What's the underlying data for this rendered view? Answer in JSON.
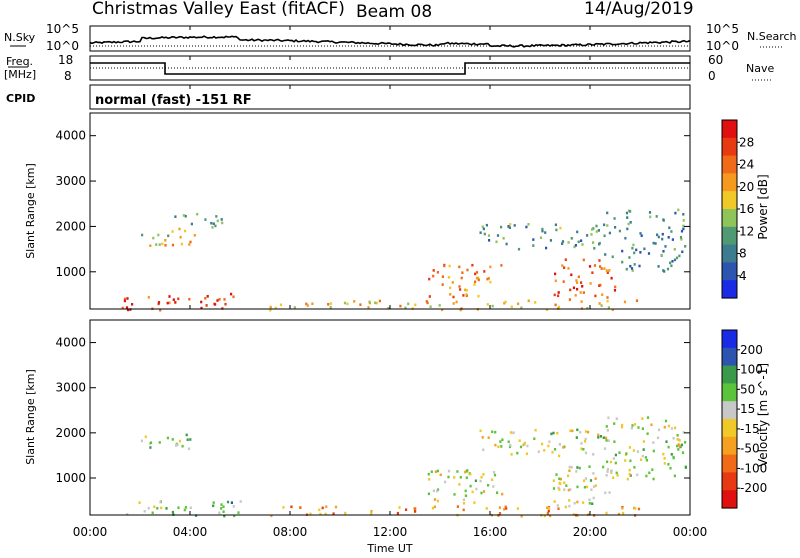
{
  "header": {
    "station": "Christmas Valley East (fitACF)",
    "beam": "Beam 08",
    "date": "14/Aug/2019"
  },
  "top_panels": {
    "nsky_label": "N.Sky",
    "nsearch_label": "N.Search",
    "noise_ticks": [
      "10^5",
      "10^0"
    ],
    "freq_label_1": "Freq.",
    "freq_label_2": "[MHz]",
    "freq_ticks": [
      "18",
      "8"
    ],
    "nave_label": "Nave",
    "nave_ticks": [
      "60",
      "0"
    ],
    "cpid_label": "CPID",
    "cpid_text": "normal (fast) -151 RF"
  },
  "chart_data": [
    {
      "type": "heatmap",
      "quantity": "Power",
      "xlabel": "Time UT",
      "ylabel": "Slant Range [km]",
      "x_ticks": [
        "00:00",
        "04:00",
        "08:00",
        "12:00",
        "16:00",
        "20:00",
        "00:00"
      ],
      "y_ticks": [
        1000,
        2000,
        3000,
        4000
      ],
      "ylim": [
        180,
        4500
      ],
      "colorbar": {
        "label": "Power [dB]",
        "ticks": [
          4,
          8,
          12,
          16,
          20,
          24,
          28
        ],
        "range": [
          0,
          32
        ],
        "colors": [
          "#1a2be6",
          "#2d55b0",
          "#3b7d8f",
          "#4f9a72",
          "#8fc45a",
          "#f0c828",
          "#f59a1e",
          "#f06a18",
          "#e83a12",
          "#e01010"
        ]
      },
      "regions": [
        {
          "t": [
            1.2,
            6.0
          ],
          "r": [
            180,
            550
          ],
          "level": 0.85
        },
        {
          "t": [
            2.0,
            4.2
          ],
          "r": [
            1600,
            2000
          ],
          "level": 0.55
        },
        {
          "t": [
            3.0,
            5.5
          ],
          "r": [
            2000,
            2300
          ],
          "level": 0.35
        },
        {
          "t": [
            7.0,
            22.0
          ],
          "r": [
            180,
            400
          ],
          "level": 0.6
        },
        {
          "t": [
            13.5,
            16.5
          ],
          "r": [
            450,
            1200
          ],
          "level": 0.7
        },
        {
          "t": [
            15.5,
            20.5
          ],
          "r": [
            1500,
            2100
          ],
          "level": 0.35
        },
        {
          "t": [
            18.5,
            21.0
          ],
          "r": [
            400,
            1300
          ],
          "level": 0.8
        },
        {
          "t": [
            20.5,
            23.8
          ],
          "r": [
            1000,
            2400
          ],
          "level": 0.3
        }
      ]
    },
    {
      "type": "heatmap",
      "quantity": "Velocity",
      "xlabel": "Time UT",
      "ylabel": "Slant Range [km]",
      "x_ticks": [
        "00:00",
        "04:00",
        "08:00",
        "12:00",
        "16:00",
        "20:00",
        "00:00"
      ],
      "y_ticks": [
        1000,
        2000,
        3000,
        4000
      ],
      "ylim": [
        180,
        4500
      ],
      "colorbar": {
        "label": "Velocity [m s^-1]",
        "ticks": [
          200,
          100,
          50,
          15,
          -15,
          -50,
          -100,
          -200
        ],
        "colors": [
          "#1a2be6",
          "#2d55b0",
          "#3b9a4a",
          "#5cc43a",
          "#c8c8c8",
          "#f0c828",
          "#f5a020",
          "#f06a18",
          "#e83a12",
          "#e01010"
        ]
      },
      "regions": [
        {
          "t": [
            1.2,
            6.0
          ],
          "r": [
            180,
            550
          ],
          "level": 0.35
        },
        {
          "t": [
            2.0,
            4.2
          ],
          "r": [
            1600,
            2000
          ],
          "level": 0.4
        },
        {
          "t": [
            7.0,
            22.0
          ],
          "r": [
            180,
            400
          ],
          "level": 0.68
        },
        {
          "t": [
            13.5,
            16.5
          ],
          "r": [
            450,
            1200
          ],
          "level": 0.45
        },
        {
          "t": [
            15.5,
            20.5
          ],
          "r": [
            1500,
            2100
          ],
          "level": 0.45
        },
        {
          "t": [
            18.5,
            21.0
          ],
          "r": [
            400,
            1300
          ],
          "level": 0.45
        },
        {
          "t": [
            20.5,
            23.8
          ],
          "r": [
            1000,
            2400
          ],
          "level": 0.45
        }
      ]
    }
  ]
}
